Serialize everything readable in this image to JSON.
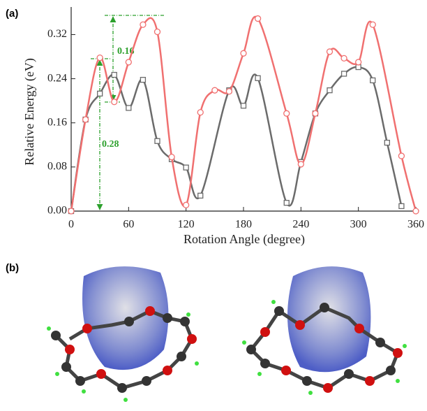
{
  "panel_a_label": "(a)",
  "panel_b_label": "(b)",
  "chart_data": {
    "type": "line",
    "x_label": "Rotation Angle (degree)",
    "y_label": "Relative Energy (eV)",
    "xlim": [
      0,
      360
    ],
    "xticks": [
      0,
      60,
      120,
      180,
      240,
      300,
      360
    ],
    "ylim": [
      0,
      0.37
    ],
    "yticks": [
      {
        "value": 0,
        "label": "0.00"
      },
      {
        "value": 0.08,
        "label": "0.08"
      },
      {
        "value": 0.16,
        "label": "0.16"
      },
      {
        "value": 0.24,
        "label": "0.24"
      },
      {
        "value": 0.32,
        "label": "0.32"
      }
    ],
    "annotations": [
      "0.16",
      "0.28"
    ],
    "series": [
      {
        "marker": "square",
        "color": "#6b6b6b",
        "x": [
          0,
          15,
          30,
          45,
          60,
          75,
          90,
          105,
          120,
          135,
          165,
          180,
          195,
          225,
          240,
          255,
          270,
          285,
          300,
          315,
          330,
          345
        ],
        "values": [
          0,
          0.166,
          0.213,
          0.247,
          0.187,
          0.238,
          0.127,
          0.094,
          0.079,
          0.028,
          0.219,
          0.191,
          0.241,
          0.015,
          0.089,
          0.177,
          0.219,
          0.249,
          0.261,
          0.237,
          0.124,
          0.009
        ]
      },
      {
        "marker": "circle",
        "color": "#f07070",
        "x": [
          0,
          15,
          30,
          45,
          60,
          75,
          90,
          105,
          120,
          135,
          150,
          165,
          180,
          195,
          225,
          240,
          255,
          270,
          285,
          300,
          315,
          345,
          360
        ],
        "values": [
          0,
          0.166,
          0.278,
          0.198,
          0.27,
          0.338,
          0.325,
          0.098,
          0.011,
          0.179,
          0.219,
          0.217,
          0.286,
          0.349,
          0.177,
          0.085,
          0.177,
          0.289,
          0.277,
          0.27,
          0.338,
          0.1,
          0
        ]
      }
    ]
  }
}
